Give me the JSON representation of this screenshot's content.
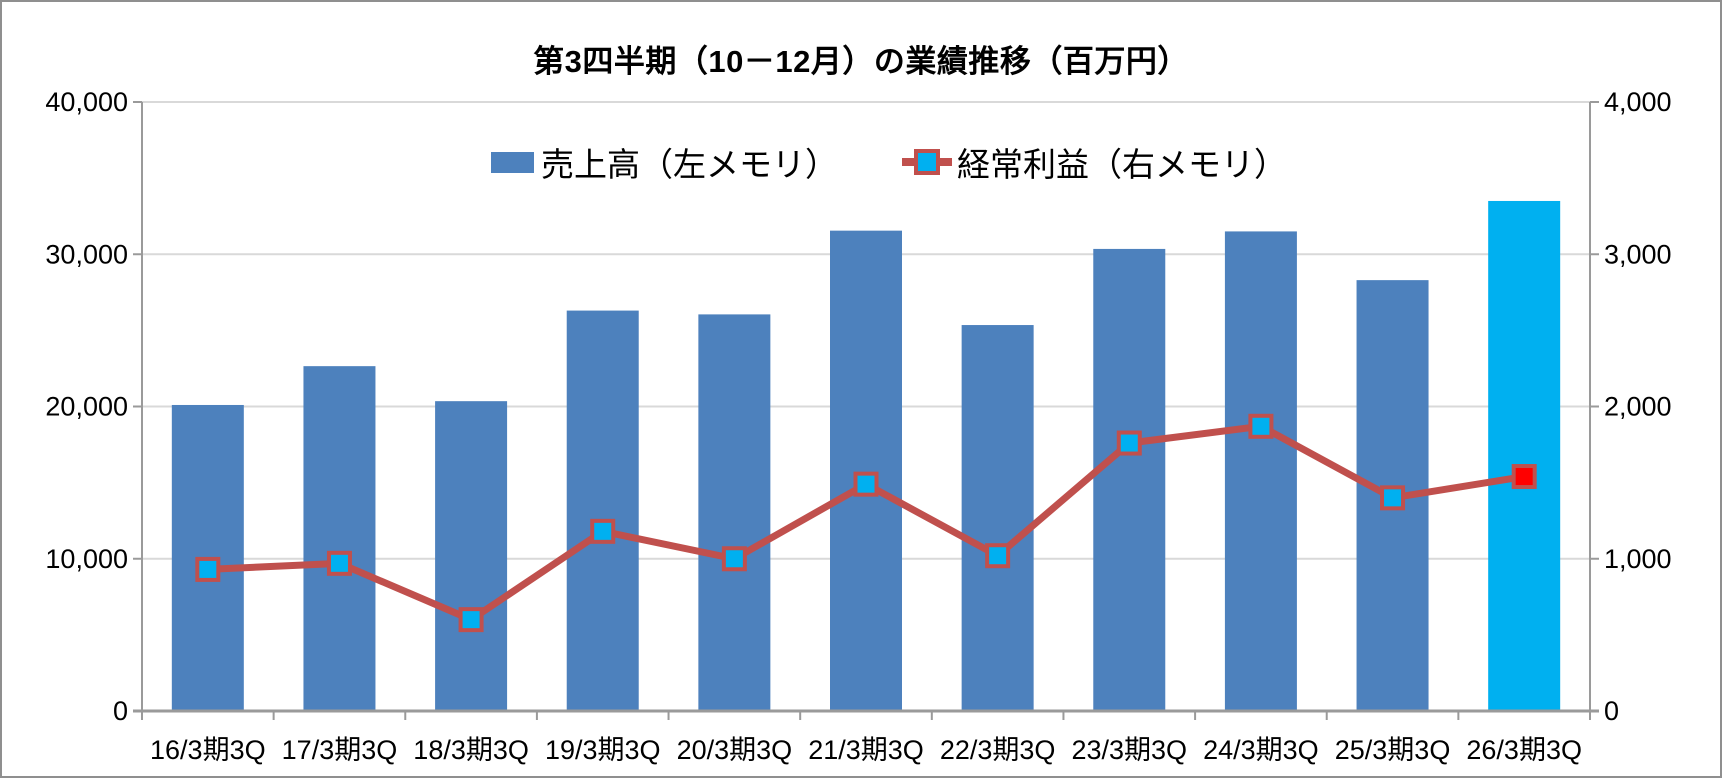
{
  "window": {
    "background": "#ffffff",
    "border_color": "#8f8f8f"
  },
  "title": "第3四半期（10－12月）の業績推移（百万円）",
  "legend": {
    "sales": {
      "label": "売上高（左メモリ）",
      "swatch_color": "#4d81bd"
    },
    "profit": {
      "label": "経常利益（右メモリ）",
      "line_color": "#c0504d",
      "marker_fill": "#00b0f0",
      "marker_border": "#c0504d"
    }
  },
  "left_axis": {
    "tick_labels": [
      "40,000",
      "30,000",
      "20,000",
      "10,000",
      "0"
    ],
    "min": 0,
    "max": 40000
  },
  "right_axis": {
    "tick_labels": [
      "4,000",
      "3,000",
      "2,000",
      "1,000",
      "0"
    ],
    "min": 0,
    "max": 4000
  },
  "chart_data": {
    "type": "bar+line combo",
    "title": "第3四半期（10－12月）の業績推移（百万円）",
    "categories": [
      "16/3期3Q",
      "17/3期3Q",
      "18/3期3Q",
      "19/3期3Q",
      "20/3期3Q",
      "21/3期3Q",
      "22/3期3Q",
      "23/3期3Q",
      "24/3期3Q",
      "25/3期3Q",
      "26/3期3Q"
    ],
    "series": [
      {
        "name": "売上高（左メモリ）",
        "type": "bar",
        "axis": "left",
        "color": "#4d81bd",
        "highlight_index": 10,
        "highlight_color": "#00b0f0",
        "values": [
          20100,
          22650,
          20350,
          26300,
          26050,
          31550,
          25350,
          30350,
          31500,
          28300,
          33500
        ]
      },
      {
        "name": "経常利益（右メモリ）",
        "type": "line",
        "axis": "right",
        "color": "#c0504d",
        "marker_fill": "#00b0f0",
        "marker_border": "#c0504d",
        "last_marker_fill": "#ff0000",
        "values": [
          930,
          970,
          600,
          1180,
          1000,
          1490,
          1020,
          1760,
          1870,
          1400,
          1540
        ]
      }
    ],
    "left_ylim": [
      0,
      40000
    ],
    "right_ylim": [
      0,
      4000
    ],
    "gridlines": "horizontal light gray at left-axis ticks",
    "legend_position": "top-inside"
  },
  "colors": {
    "gridline": "#d9d9d9",
    "axis": "#9a9a9a",
    "text": "#000000"
  }
}
